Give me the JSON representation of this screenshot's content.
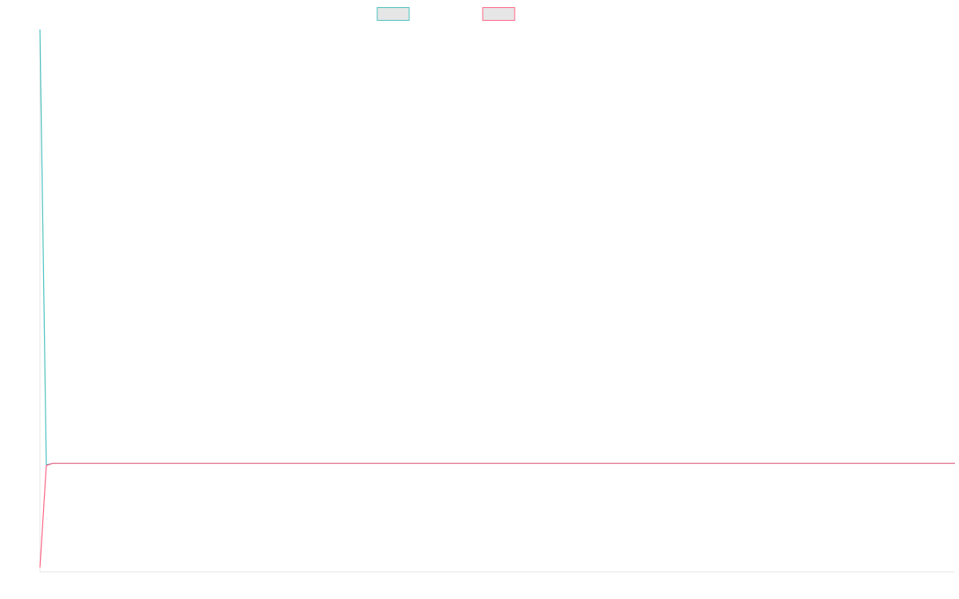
{
  "chart_data": {
    "type": "line",
    "title": "",
    "xlabel": "",
    "ylabel": "",
    "legend": {
      "placement": "top-center",
      "entries": [
        {
          "name": "",
          "border_color": "#4bc0c0",
          "fill_color": "#e6e6e6"
        },
        {
          "name": "",
          "border_color": "#ff6384",
          "fill_color": "#e6e6e6"
        }
      ]
    },
    "grid": false,
    "x_count": 145,
    "ylim": [
      -15,
      60
    ],
    "series": [
      {
        "name": "",
        "color": "#4bc0c0",
        "values": [
          60,
          -0.2,
          0
        ]
      },
      {
        "name": "",
        "color": "#ff6384",
        "values": [
          -14.4,
          -0.3,
          0
        ]
      }
    ]
  }
}
